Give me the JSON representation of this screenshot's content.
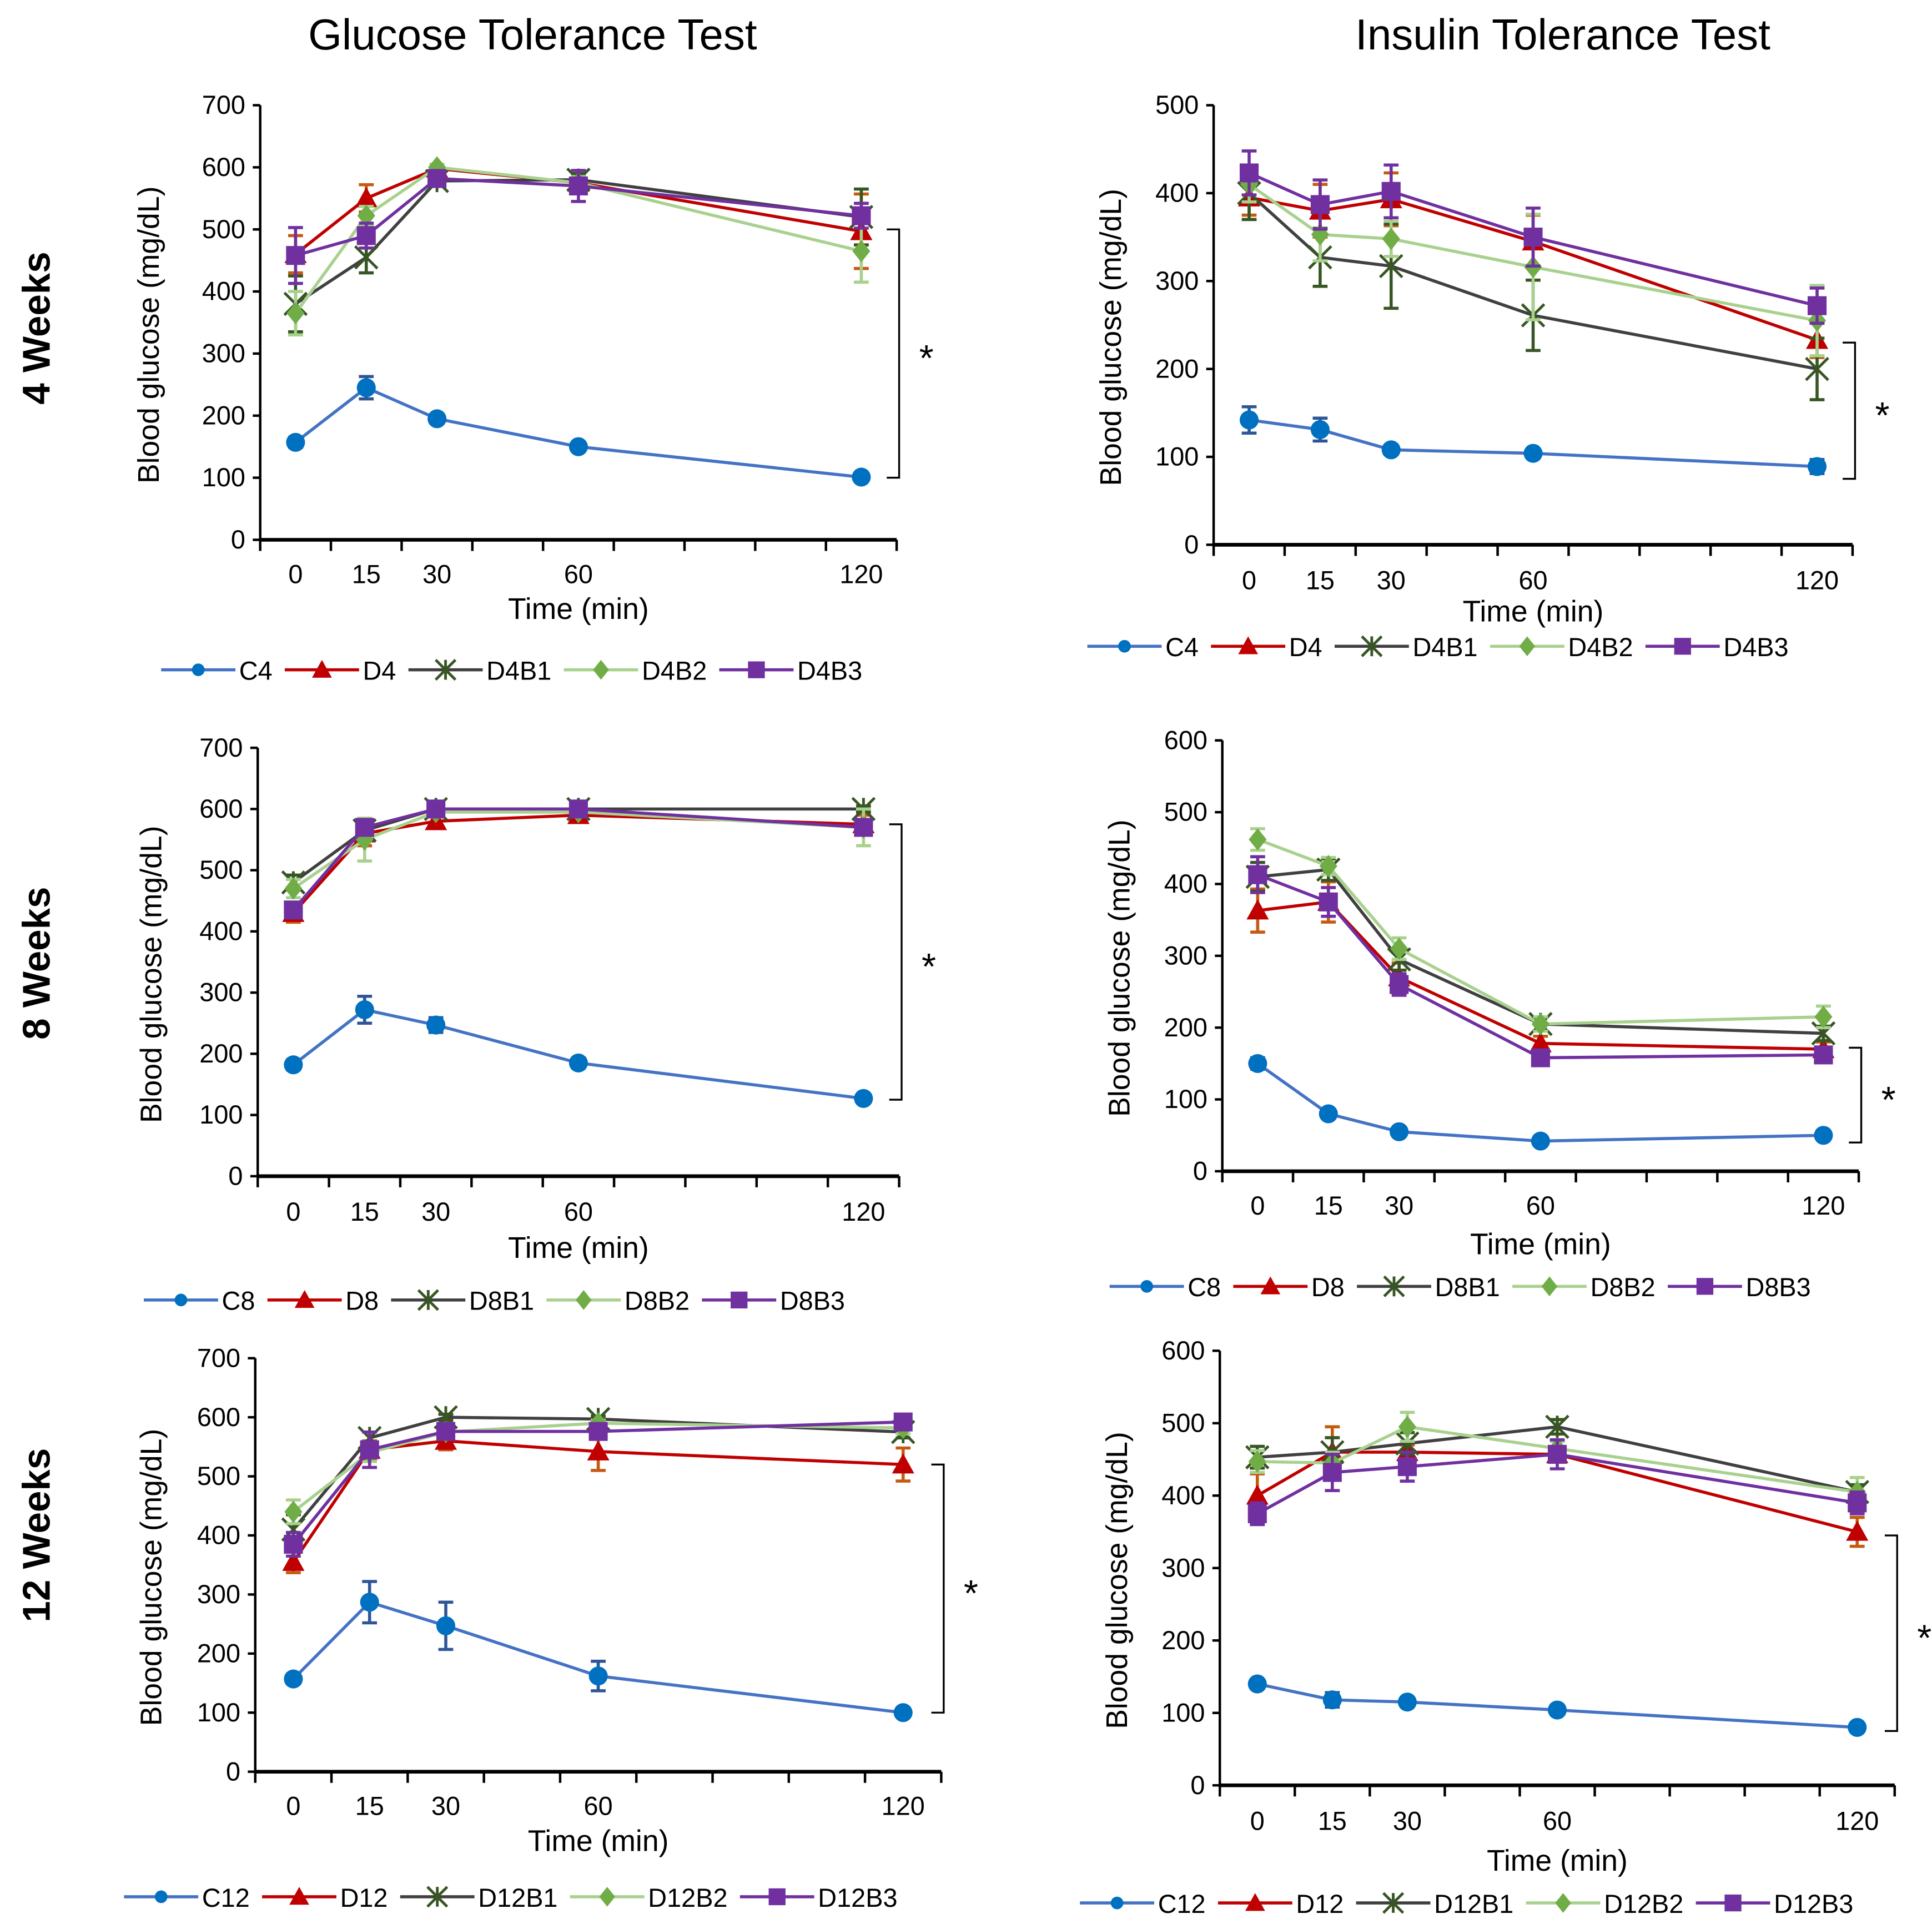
{
  "titles": [
    "Glucose Tolerance Test",
    "Insulin Tolerance Test"
  ],
  "row_labels": [
    "4 Weeks",
    "8 Weeks",
    "12 Weeks"
  ],
  "colors": {
    "C": {
      "line": "#4472C4",
      "marker": "#0070C0",
      "err": "#2F5597"
    },
    "D": {
      "line": "#C00000",
      "marker": "#C00000",
      "err": "#C55A11"
    },
    "B1": {
      "line": "#404040",
      "marker": "#375623",
      "err": "#375623"
    },
    "B2": {
      "line": "#A9D18E",
      "marker": "#70AD47",
      "err": "#A9D18E"
    },
    "B3": {
      "line": "#7030A0",
      "marker": "#7030A0",
      "err": "#7030A0"
    }
  },
  "chart_data": [
    {
      "type": "line",
      "id": "gtt4",
      "title": "Glucose Tolerance Test",
      "row": "4 Weeks",
      "xlabel": "Time (min)",
      "ylabel": "Blood glucose (mg/dL)",
      "x": [
        0,
        15,
        30,
        60,
        120
      ],
      "ylim": [
        0,
        700
      ],
      "yticks": [
        0,
        100,
        200,
        300,
        400,
        500,
        600,
        700
      ],
      "legend": "bottom",
      "significance": "*",
      "bracket": [
        100,
        500
      ],
      "series": [
        {
          "name": "C4",
          "key": "C",
          "values": [
            157,
            245,
            195,
            150,
            101
          ],
          "error": [
            8,
            18,
            6,
            5,
            5
          ]
        },
        {
          "name": "D4",
          "key": "D",
          "values": [
            460,
            550,
            598,
            575,
            497
          ],
          "error": [
            30,
            22,
            5,
            10,
            60
          ]
        },
        {
          "name": "D4B1",
          "key": "B1",
          "values": [
            380,
            455,
            578,
            580,
            520
          ],
          "error": [
            45,
            25,
            5,
            10,
            45
          ]
        },
        {
          "name": "D4B2",
          "key": "B2",
          "values": [
            365,
            522,
            600,
            575,
            465
          ],
          "error": [
            35,
            15,
            5,
            10,
            50
          ]
        },
        {
          "name": "D4B3",
          "key": "B3",
          "values": [
            458,
            490,
            582,
            570,
            522
          ],
          "error": [
            45,
            20,
            5,
            25,
            20
          ]
        }
      ]
    },
    {
      "type": "line",
      "id": "itt4",
      "title": "Insulin Tolerance Test",
      "row": "4 Weeks",
      "xlabel": "Time (min)",
      "ylabel": "Blood glucose (mg/dL)",
      "x": [
        0,
        15,
        30,
        60,
        120
      ],
      "ylim": [
        0,
        500
      ],
      "yticks": [
        0,
        100,
        200,
        300,
        400,
        500
      ],
      "legend": "bottom",
      "significance": "*",
      "bracket": [
        75,
        230
      ],
      "series": [
        {
          "name": "C4",
          "key": "C",
          "values": [
            142,
            131,
            108,
            104,
            89
          ],
          "error": [
            15,
            13,
            5,
            5,
            8
          ]
        },
        {
          "name": "D4",
          "key": "D",
          "values": [
            395,
            380,
            393,
            345,
            233
          ],
          "error": [
            20,
            30,
            30,
            30,
            20
          ]
        },
        {
          "name": "D4B1",
          "key": "B1",
          "values": [
            400,
            327,
            317,
            261,
            200
          ],
          "error": [
            30,
            33,
            48,
            40,
            35
          ]
        },
        {
          "name": "D4B2",
          "key": "B2",
          "values": [
            410,
            353,
            348,
            316,
            255
          ],
          "error": [
            20,
            30,
            20,
            60,
            40
          ]
        },
        {
          "name": "D4B3",
          "key": "B3",
          "values": [
            423,
            387,
            402,
            350,
            272
          ],
          "error": [
            25,
            28,
            30,
            33,
            20
          ]
        }
      ]
    },
    {
      "type": "line",
      "id": "gtt8",
      "title": "Glucose Tolerance Test",
      "row": "8 Weeks",
      "xlabel": "Time (min)",
      "ylabel": "Blood glucose (mg/dL)",
      "x": [
        0,
        15,
        30,
        60,
        120
      ],
      "ylim": [
        0,
        700
      ],
      "yticks": [
        0,
        100,
        200,
        300,
        400,
        500,
        600,
        700
      ],
      "legend": "bottom",
      "significance": "*",
      "bracket": [
        125,
        575
      ],
      "series": [
        {
          "name": "C8",
          "key": "C",
          "values": [
            182,
            272,
            247,
            185,
            127
          ],
          "error": [
            8,
            22,
            12,
            8,
            6
          ]
        },
        {
          "name": "D8",
          "key": "D",
          "values": [
            430,
            560,
            580,
            590,
            575
          ],
          "error": [
            15,
            20,
            8,
            10,
            15
          ]
        },
        {
          "name": "D8B1",
          "key": "B1",
          "values": [
            480,
            565,
            600,
            600,
            600
          ],
          "error": [
            12,
            15,
            5,
            5,
            5
          ]
        },
        {
          "name": "D8B2",
          "key": "B2",
          "values": [
            470,
            550,
            595,
            595,
            570
          ],
          "error": [
            15,
            35,
            5,
            5,
            30
          ]
        },
        {
          "name": "D8B3",
          "key": "B3",
          "values": [
            435,
            570,
            600,
            600,
            570
          ],
          "error": [
            10,
            10,
            5,
            5,
            10
          ]
        }
      ]
    },
    {
      "type": "line",
      "id": "itt8",
      "title": "Insulin Tolerance Test",
      "row": "8 Weeks",
      "xlabel": "Time (min)",
      "ylabel": "Blood glucose (mg/dL)",
      "x": [
        0,
        15,
        30,
        60,
        120
      ],
      "ylim": [
        0,
        600
      ],
      "yticks": [
        0,
        100,
        200,
        300,
        400,
        500,
        600
      ],
      "legend": "bottom",
      "significance": "*",
      "bracket": [
        40,
        172
      ],
      "series": [
        {
          "name": "C8",
          "key": "C",
          "values": [
            150,
            80,
            55,
            42,
            50
          ],
          "error": [
            8,
            5,
            5,
            5,
            5
          ]
        },
        {
          "name": "D8",
          "key": "D",
          "values": [
            363,
            375,
            270,
            178,
            170
          ],
          "error": [
            30,
            28,
            20,
            10,
            10
          ]
        },
        {
          "name": "D8B1",
          "key": "B1",
          "values": [
            410,
            420,
            295,
            205,
            192
          ],
          "error": [
            20,
            15,
            15,
            10,
            10
          ]
        },
        {
          "name": "D8B2",
          "key": "B2",
          "values": [
            462,
            425,
            310,
            205,
            215
          ],
          "error": [
            15,
            12,
            15,
            10,
            15
          ]
        },
        {
          "name": "D8B3",
          "key": "B3",
          "values": [
            413,
            375,
            260,
            158,
            162
          ],
          "error": [
            25,
            20,
            15,
            10,
            10
          ]
        }
      ]
    },
    {
      "type": "line",
      "id": "gtt12",
      "title": "Glucose Tolerance Test",
      "row": "12 Weeks",
      "xlabel": "Time (min)",
      "ylabel": "Blood glucose (mg/dL)",
      "x": [
        0,
        15,
        30,
        60,
        120
      ],
      "ylim": [
        0,
        700
      ],
      "yticks": [
        0,
        100,
        200,
        300,
        400,
        500,
        600,
        700
      ],
      "legend": "bottom",
      "significance": "*",
      "bracket": [
        100,
        520
      ],
      "series": [
        {
          "name": "C12",
          "key": "C",
          "values": [
            157,
            287,
            247,
            162,
            100
          ],
          "error": [
            8,
            35,
            40,
            25,
            5
          ]
        },
        {
          "name": "D12",
          "key": "D",
          "values": [
            355,
            545,
            560,
            542,
            520
          ],
          "error": [
            18,
            15,
            15,
            32,
            28
          ]
        },
        {
          "name": "D12B1",
          "key": "B1",
          "values": [
            410,
            565,
            600,
            597,
            575
          ],
          "error": [
            25,
            10,
            5,
            5,
            10
          ]
        },
        {
          "name": "D12B2",
          "key": "B2",
          "values": [
            440,
            540,
            575,
            590,
            582
          ],
          "error": [
            20,
            15,
            5,
            5,
            10
          ]
        },
        {
          "name": "D12B3",
          "key": "B3",
          "values": [
            385,
            545,
            576,
            576,
            592
          ],
          "error": [
            20,
            30,
            10,
            10,
            5
          ]
        }
      ]
    },
    {
      "type": "line",
      "id": "itt12",
      "title": "Insulin Tolerance Test",
      "row": "12 Weeks",
      "xlabel": "Time (min)",
      "ylabel": "Blood glucose (mg/dL)",
      "x": [
        0,
        15,
        30,
        60,
        120
      ],
      "ylim": [
        0,
        600
      ],
      "yticks": [
        0,
        100,
        200,
        300,
        400,
        500,
        600
      ],
      "legend": "bottom",
      "significance": "*",
      "bracket": [
        75,
        345
      ],
      "series": [
        {
          "name": "C12",
          "key": "C",
          "values": [
            140,
            118,
            115,
            104,
            80
          ],
          "error": [
            6,
            10,
            6,
            6,
            5
          ]
        },
        {
          "name": "D12",
          "key": "D",
          "values": [
            400,
            460,
            460,
            457,
            350
          ],
          "error": [
            30,
            35,
            10,
            10,
            20
          ]
        },
        {
          "name": "D12B1",
          "key": "B1",
          "values": [
            453,
            460,
            472,
            495,
            405
          ],
          "error": [
            15,
            20,
            15,
            10,
            10
          ]
        },
        {
          "name": "D12B2",
          "key": "B2",
          "values": [
            447,
            445,
            495,
            465,
            405
          ],
          "error": [
            15,
            15,
            20,
            10,
            20
          ]
        },
        {
          "name": "D12B3",
          "key": "B3",
          "values": [
            375,
            432,
            440,
            457,
            390
          ],
          "error": [
            15,
            25,
            20,
            20,
            15
          ]
        }
      ]
    }
  ]
}
